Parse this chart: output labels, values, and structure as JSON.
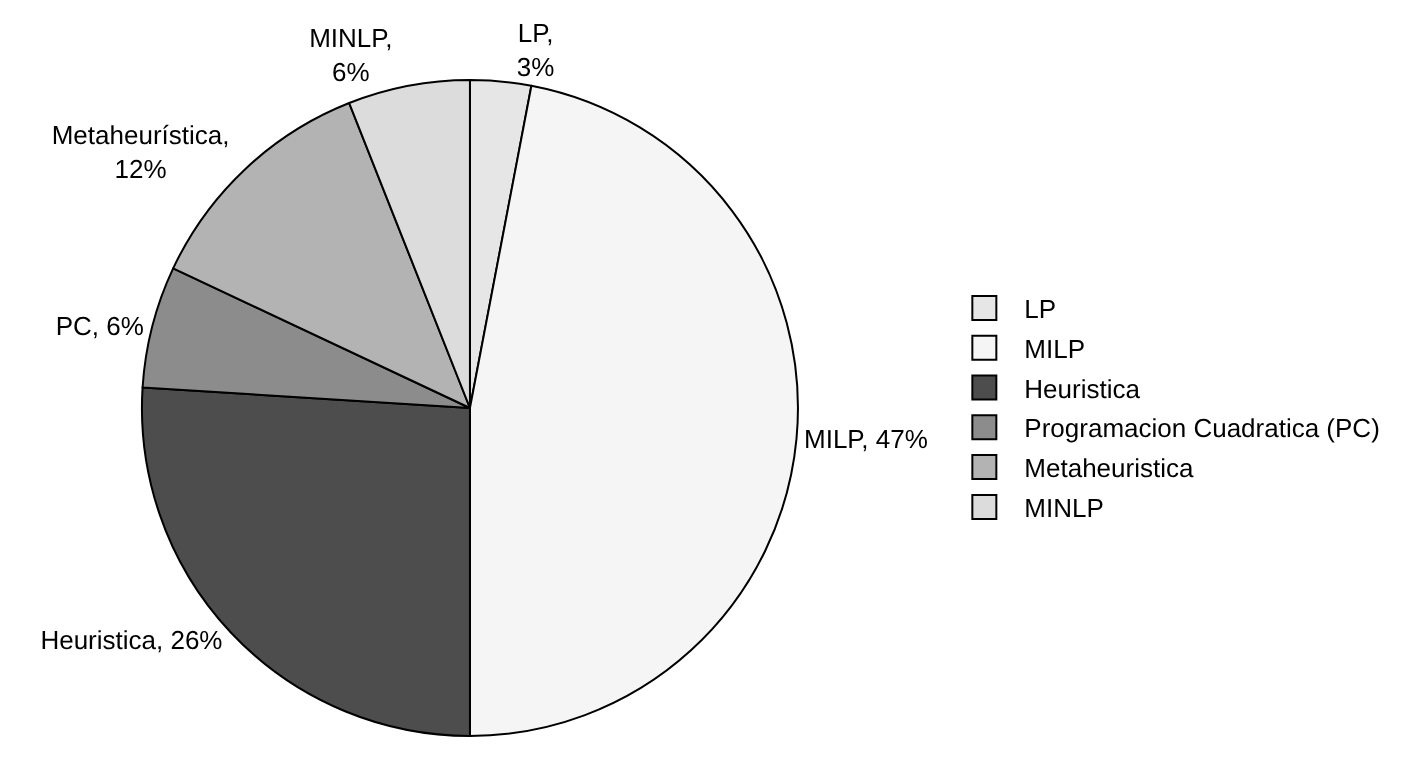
{
  "chart_data": {
    "type": "pie",
    "categories": [
      "LP",
      "MILP",
      "Heuristica",
      "Programacion Cuadratica (PC)",
      "Metaheuristica",
      "MINLP"
    ],
    "values": [
      3,
      47,
      26,
      6,
      12,
      6
    ],
    "value_labels": [
      "LP,\n3%",
      "MILP, 47%",
      "Heuristica, 26%",
      "PC, 6%",
      "Metaheurística,\n12%",
      "MINLP,\n6%"
    ],
    "colors": [
      "#e6e6e6",
      "#f5f5f5",
      "#4d4d4d",
      "#8c8c8c",
      "#b3b3b3",
      "#dcdcdc"
    ],
    "legend": "right"
  }
}
